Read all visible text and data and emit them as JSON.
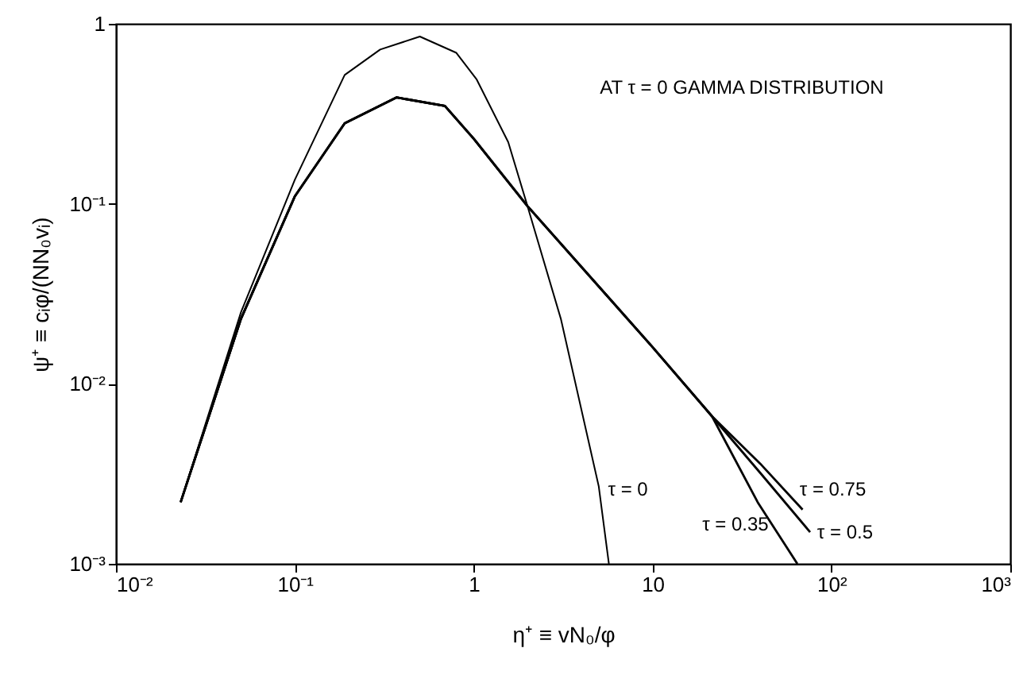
{
  "chart_data": {
    "type": "line",
    "xlabel": "η⁺ ≡ vN₀/φ",
    "ylabel": "ψ⁺ ≡ cᵢφ/(NN₀vᵢ)",
    "log": "xy",
    "xlim": [
      0.01,
      1000
    ],
    "ylim": [
      0.001,
      1
    ],
    "xticks": [
      {
        "value": 0.01,
        "label": "10⁻²"
      },
      {
        "value": 0.1,
        "label": "10⁻¹"
      },
      {
        "value": 1,
        "label": "1"
      },
      {
        "value": 10,
        "label": "10"
      },
      {
        "value": 100,
        "label": "10²"
      },
      {
        "value": 1000,
        "label": "10³"
      }
    ],
    "yticks": [
      {
        "value": 0.001,
        "label": "10⁻³"
      },
      {
        "value": 0.01,
        "label": "10⁻²"
      },
      {
        "value": 0.1,
        "label": "10⁻¹"
      },
      {
        "value": 1,
        "label": "1"
      }
    ],
    "series": [
      {
        "name": "τ = 0",
        "color": "#000000",
        "x": [
          0.023,
          0.05,
          0.1,
          0.19,
          0.3,
          0.5,
          0.8,
          1.04,
          1.56,
          2.0,
          3.07,
          5.0,
          5.7
        ],
        "values": [
          0.0022,
          0.025,
          0.136,
          0.52,
          0.72,
          0.85,
          0.69,
          0.49,
          0.22,
          0.097,
          0.023,
          0.0027,
          0.001
        ]
      },
      {
        "name": "τ = 0.35",
        "color": "#000000",
        "x": [
          0.023,
          0.05,
          0.1,
          0.19,
          0.37,
          0.69,
          1.0,
          2.0,
          10,
          21.5,
          38.7,
          64.5
        ],
        "values": [
          0.0022,
          0.023,
          0.11,
          0.28,
          0.39,
          0.35,
          0.23,
          0.097,
          0.016,
          0.0066,
          0.0022,
          0.001
        ]
      },
      {
        "name": "τ = 0.5",
        "color": "#000000",
        "x": [
          0.023,
          0.05,
          0.1,
          0.19,
          0.37,
          0.69,
          1.0,
          2.0,
          10,
          21.5,
          40,
          76
        ],
        "values": [
          0.0022,
          0.023,
          0.11,
          0.28,
          0.39,
          0.35,
          0.23,
          0.097,
          0.016,
          0.0066,
          0.0032,
          0.0015
        ]
      },
      {
        "name": "τ = 0.75",
        "color": "#000000",
        "x": [
          0.023,
          0.05,
          0.1,
          0.19,
          0.37,
          0.69,
          1.0,
          2.0,
          10,
          21.5,
          40,
          69
        ],
        "values": [
          0.0022,
          0.023,
          0.11,
          0.28,
          0.39,
          0.35,
          0.23,
          0.097,
          0.016,
          0.0066,
          0.0036,
          0.002
        ]
      }
    ],
    "annotations": [
      "AT τ = 0  GAMMA DISTRIBUTION"
    ]
  }
}
